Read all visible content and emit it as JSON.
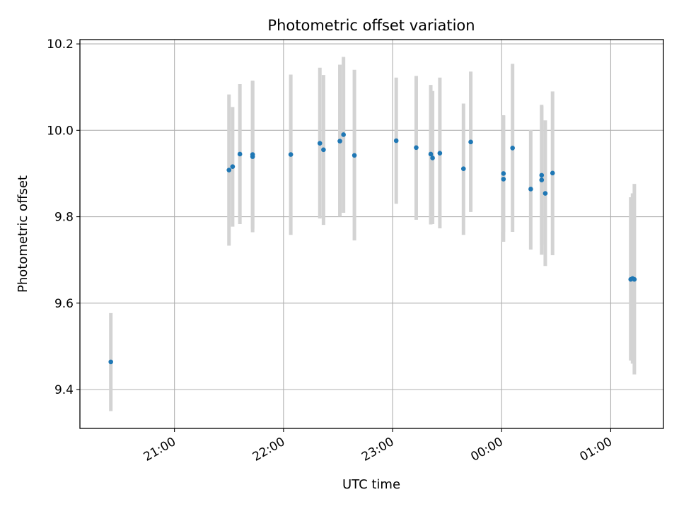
{
  "chart_data": {
    "type": "scatter",
    "title": "Photometric offset variation",
    "xlabel": "UTC time",
    "ylabel": "Photometric offset",
    "x_axis_kind": "time",
    "xlim": [
      "20:08",
      "01:29"
    ],
    "ylim": [
      9.31,
      10.21
    ],
    "x_ticks": [
      "21:00",
      "22:00",
      "23:00",
      "00:00",
      "01:00"
    ],
    "y_ticks": [
      "9.4",
      "9.6",
      "9.8",
      "10.0",
      "10.2"
    ],
    "grid": true,
    "marker_color": "#1f77b4",
    "errorbar_color": "#d3d3d3",
    "points": [
      {
        "t": "20:25",
        "y": 9.464,
        "lo": 9.35,
        "hi": 9.577
      },
      {
        "t": "21:30",
        "y": 9.908,
        "lo": 9.733,
        "hi": 10.083
      },
      {
        "t": "21:32",
        "y": 9.916,
        "lo": 9.777,
        "hi": 10.054
      },
      {
        "t": "21:36",
        "y": 9.945,
        "lo": 9.783,
        "hi": 10.107
      },
      {
        "t": "21:43",
        "y": 9.944,
        "lo": 9.772,
        "hi": 10.115
      },
      {
        "t": "21:43",
        "y": 9.939,
        "lo": 9.764,
        "hi": 10.113
      },
      {
        "t": "22:04",
        "y": 9.944,
        "lo": 9.758,
        "hi": 10.129
      },
      {
        "t": "22:20",
        "y": 9.97,
        "lo": 9.796,
        "hi": 10.145
      },
      {
        "t": "22:22",
        "y": 9.955,
        "lo": 9.781,
        "hi": 10.128
      },
      {
        "t": "22:31",
        "y": 9.975,
        "lo": 9.8,
        "hi": 10.152
      },
      {
        "t": "22:33",
        "y": 9.99,
        "lo": 9.809,
        "hi": 10.17
      },
      {
        "t": "22:39",
        "y": 9.942,
        "lo": 9.745,
        "hi": 10.14
      },
      {
        "t": "23:02",
        "y": 9.976,
        "lo": 9.83,
        "hi": 10.122
      },
      {
        "t": "23:13",
        "y": 9.96,
        "lo": 9.793,
        "hi": 10.126
      },
      {
        "t": "23:21",
        "y": 9.945,
        "lo": 9.782,
        "hi": 10.105
      },
      {
        "t": "23:22",
        "y": 9.936,
        "lo": 9.783,
        "hi": 10.091
      },
      {
        "t": "23:26",
        "y": 9.947,
        "lo": 9.773,
        "hi": 10.122
      },
      {
        "t": "23:39",
        "y": 9.911,
        "lo": 9.758,
        "hi": 10.062
      },
      {
        "t": "23:43",
        "y": 9.973,
        "lo": 9.811,
        "hi": 10.136
      },
      {
        "t": "00:01",
        "y": 9.9,
        "lo": 9.765,
        "hi": 10.035
      },
      {
        "t": "00:01",
        "y": 9.887,
        "lo": 9.742,
        "hi": 10.033
      },
      {
        "t": "00:06",
        "y": 9.959,
        "lo": 9.765,
        "hi": 10.154
      },
      {
        "t": "00:16",
        "y": 9.864,
        "lo": 9.724,
        "hi": 10.001
      },
      {
        "t": "00:22",
        "y": 9.896,
        "lo": 9.735,
        "hi": 10.059
      },
      {
        "t": "00:22",
        "y": 9.885,
        "lo": 9.712,
        "hi": 10.056
      },
      {
        "t": "00:24",
        "y": 9.854,
        "lo": 9.686,
        "hi": 10.023
      },
      {
        "t": "00:28",
        "y": 9.901,
        "lo": 9.711,
        "hi": 10.09
      },
      {
        "t": "01:11",
        "y": 9.655,
        "lo": 9.467,
        "hi": 9.845
      },
      {
        "t": "01:12",
        "y": 9.657,
        "lo": 9.46,
        "hi": 9.854
      },
      {
        "t": "01:13",
        "y": 9.655,
        "lo": 9.435,
        "hi": 9.876
      }
    ]
  }
}
